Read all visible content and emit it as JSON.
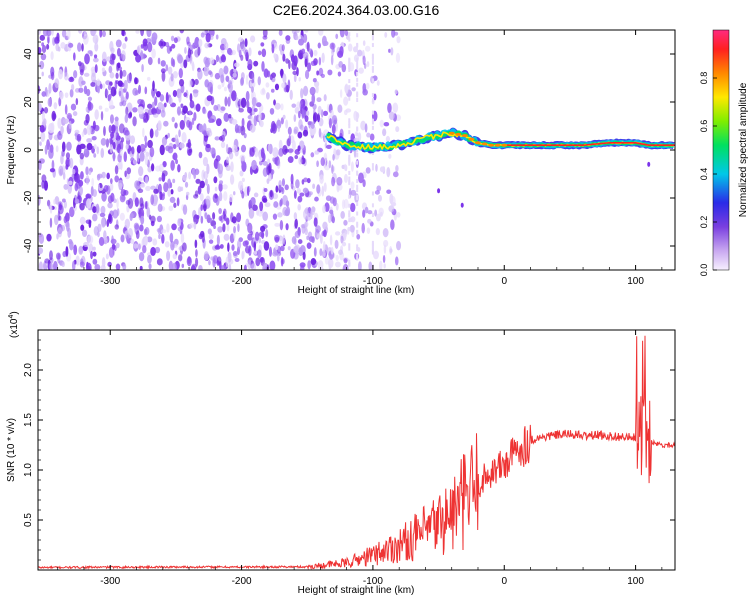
{
  "title": "C2E6.2024.364.03.00.G16",
  "chart_data": [
    {
      "type": "heatmap",
      "xlabel": "Height of straight line (km)",
      "ylabel": "Frequency (Hz)",
      "xlim": [
        -355,
        130
      ],
      "ylim": [
        -50,
        50
      ],
      "x_ticks": [
        -300,
        -200,
        -100,
        0,
        100
      ],
      "y_ticks": [
        -40,
        -20,
        0,
        20,
        40
      ],
      "colorbar": {
        "label": "Normalized spectral amplitude",
        "range": [
          0.0,
          1.0
        ],
        "ticks": [
          "0.0",
          "0.2",
          "0.4",
          "0.6",
          "0.8"
        ]
      },
      "noise_region_x": [
        -355,
        -100
      ],
      "signal_ridge": {
        "x": [
          -135,
          -120,
          -100,
          -80,
          -60,
          -40,
          -30,
          -20,
          -10,
          0,
          20,
          40,
          60,
          80,
          100,
          110,
          130
        ],
        "freq_hz": [
          6,
          2,
          1,
          2,
          5,
          7,
          6,
          3,
          2,
          2,
          2,
          2,
          2,
          3,
          3,
          2,
          2
        ]
      }
    },
    {
      "type": "line",
      "xlabel": "Height of straight line (km)",
      "ylabel": "SNR (10 * v/v)",
      "y_scale_label": "(x10",
      "y_scale_exp": "4",
      "xlim": [
        -355,
        130
      ],
      "ylim": [
        0,
        24000
      ],
      "x_ticks": [
        -300,
        -200,
        -100,
        0,
        100
      ],
      "y_ticks": [
        {
          "value": 5000,
          "label": "0.5"
        },
        {
          "value": 10000,
          "label": "1.0"
        },
        {
          "value": 15000,
          "label": "1.5"
        },
        {
          "value": 20000,
          "label": "2.0"
        }
      ],
      "series": [
        {
          "color": "#ee3333",
          "x": [
            -355,
            -300,
            -250,
            -200,
            -150,
            -120,
            -100,
            -80,
            -60,
            -40,
            -30,
            -20,
            -10,
            0,
            10,
            20,
            30,
            40,
            50,
            60,
            70,
            80,
            90,
            100,
            105,
            108,
            110,
            115,
            120,
            130
          ],
          "y": [
            250,
            280,
            300,
            300,
            320,
            700,
            1500,
            2500,
            3800,
            5500,
            7000,
            8500,
            9800,
            10500,
            12000,
            13000,
            13300,
            13500,
            13600,
            13400,
            13500,
            13400,
            13300,
            13200,
            14000,
            12000,
            13000,
            12700,
            12500,
            12500
          ]
        }
      ]
    }
  ]
}
